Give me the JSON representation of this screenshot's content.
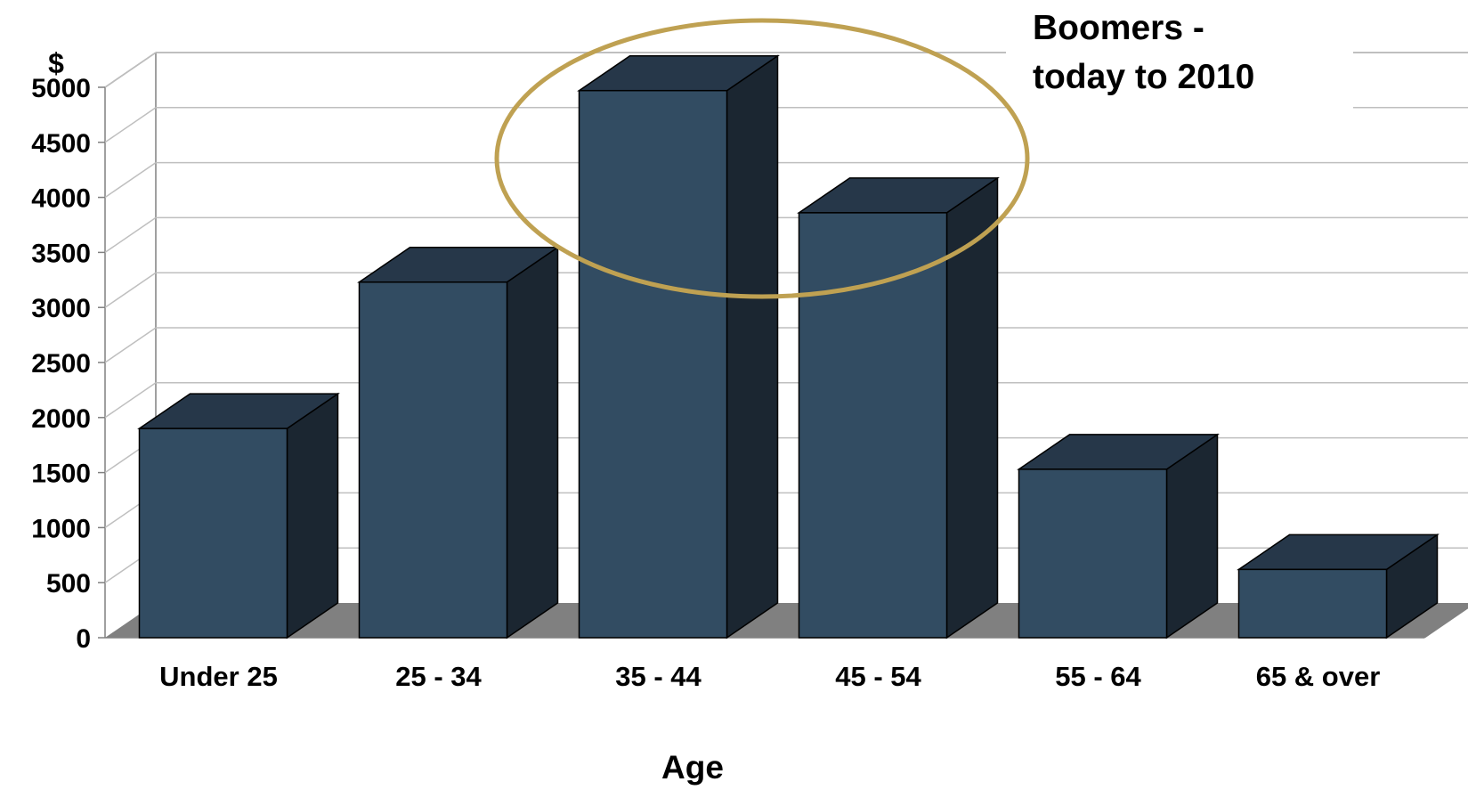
{
  "chart_data": {
    "type": "bar",
    "style": "3d-column",
    "categories": [
      "Under 25",
      "25 - 34",
      "35 - 44",
      "45 - 54",
      "55 - 64",
      "65 & over"
    ],
    "series": [
      {
        "values": [
          1900,
          3230,
          4970,
          3860,
          1530,
          620
        ]
      }
    ],
    "yticks": [
      "0",
      "500",
      "1000",
      "1500",
      "2000",
      "2500",
      "3000",
      "3500",
      "4000",
      "4500",
      "5000"
    ],
    "ylim": [
      0,
      5000
    ],
    "ylabel": "$",
    "xlabel": "Age",
    "grid": true,
    "legend": "none",
    "annotation": {
      "line1": "Boomers -",
      "line2": "today to 2010",
      "highlights": [
        "35 - 44",
        "45 - 54"
      ]
    },
    "colors": {
      "bar_front": "#324c62",
      "bar_top": "#263749",
      "bar_side": "#1b2631",
      "floor": "#808080",
      "grid": "#bfbfbf",
      "ellipse": "#bfa152"
    }
  }
}
